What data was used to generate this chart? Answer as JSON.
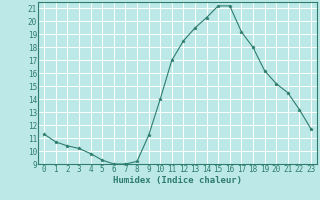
{
  "xlabel": "Humidex (Indice chaleur)",
  "x": [
    0,
    1,
    2,
    3,
    4,
    5,
    6,
    7,
    8,
    9,
    10,
    11,
    12,
    13,
    14,
    15,
    16,
    17,
    18,
    19,
    20,
    21,
    22,
    23
  ],
  "y": [
    11.3,
    10.7,
    10.4,
    10.2,
    9.8,
    9.3,
    9.0,
    9.0,
    9.2,
    11.2,
    14.0,
    17.0,
    18.5,
    19.5,
    20.3,
    21.2,
    21.2,
    19.2,
    18.0,
    16.2,
    15.2,
    14.5,
    13.2,
    11.7
  ],
  "line_color": "#2e7d6e",
  "marker": "*",
  "marker_size": 2.5,
  "background_color": "#bce8e8",
  "grid_color": "#ffffff",
  "ylim": [
    9,
    21.5
  ],
  "xlim": [
    -0.5,
    23.5
  ],
  "yticks": [
    9,
    10,
    11,
    12,
    13,
    14,
    15,
    16,
    17,
    18,
    19,
    20,
    21
  ],
  "xticks": [
    0,
    1,
    2,
    3,
    4,
    5,
    6,
    7,
    8,
    9,
    10,
    11,
    12,
    13,
    14,
    15,
    16,
    17,
    18,
    19,
    20,
    21,
    22,
    23
  ],
  "tick_fontsize": 5.5,
  "label_fontsize": 6.5
}
